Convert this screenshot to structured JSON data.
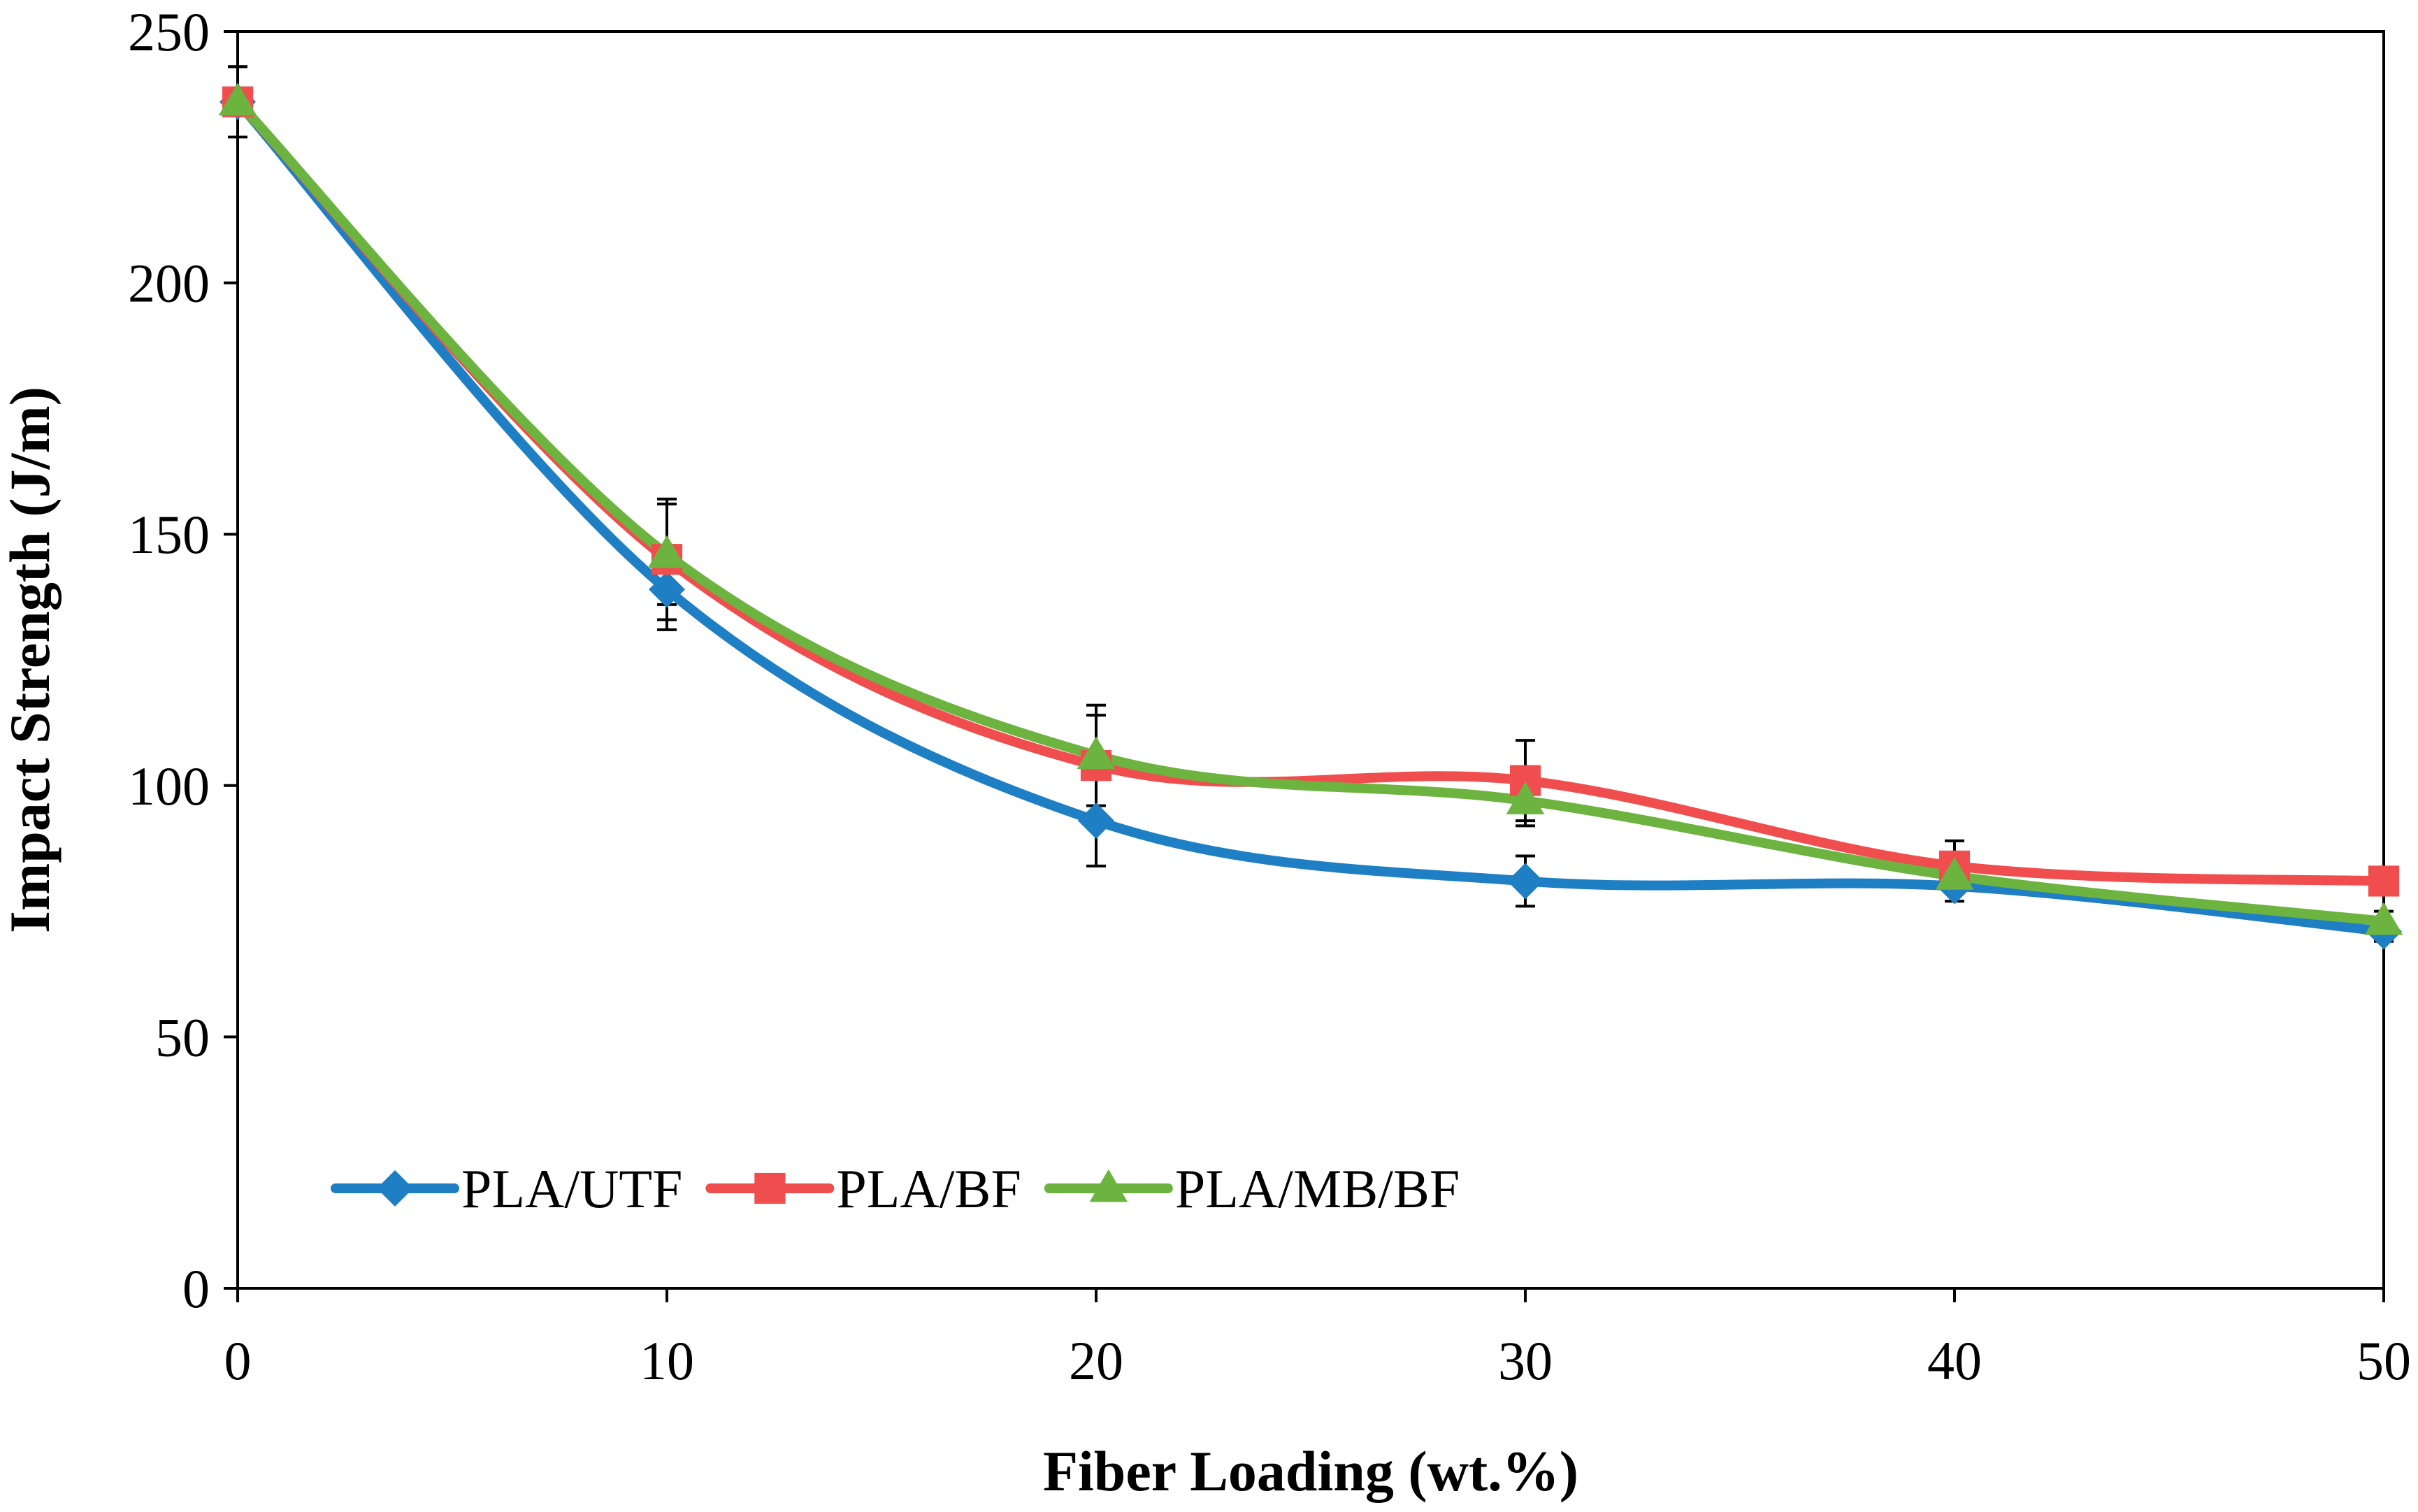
{
  "chart_data": {
    "type": "line",
    "xlabel": "Fiber Loading (wt.%)",
    "ylabel": "Impact Strength (J/m)",
    "xlim": [
      0,
      50
    ],
    "ylim": [
      0,
      250
    ],
    "xticks": [
      0,
      10,
      20,
      30,
      40,
      50
    ],
    "yticks": [
      0,
      50,
      100,
      150,
      200,
      250
    ],
    "grid": false,
    "legend_position": "bottom-left",
    "x": [
      0,
      10,
      20,
      30,
      40,
      50
    ],
    "series": [
      {
        "name": "PLA/UTF",
        "color": "#1f7fc4",
        "marker": "diamond",
        "values": [
          236,
          139,
          93,
          81,
          80,
          71
        ],
        "errors": [
          7,
          8,
          9,
          5,
          3,
          2
        ]
      },
      {
        "name": "PLA/BF",
        "color": "#f04e4e",
        "marker": "square",
        "values": [
          236,
          145,
          104,
          101,
          84,
          81
        ],
        "errors": [
          7,
          12,
          10,
          8,
          5,
          2
        ]
      },
      {
        "name": "PLA/MB/BF",
        "color": "#6db33f",
        "marker": "triangle",
        "values": [
          236,
          146,
          106,
          97,
          82,
          73
        ],
        "errors": [
          7,
          10,
          10,
          5,
          3,
          2
        ]
      }
    ]
  }
}
